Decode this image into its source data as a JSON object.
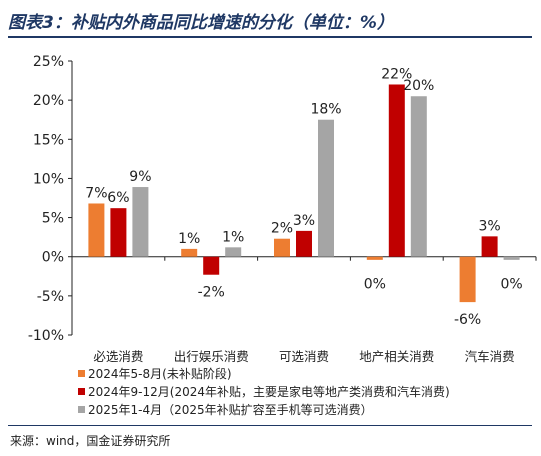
{
  "title": "图表3：补贴内外商品同比增速的分化（单位：%）",
  "source": "来源：wind，国金证券研究所",
  "colors": {
    "series": [
      "#ED7D31",
      "#C00000",
      "#A5A5A5"
    ],
    "title": "#1f3864"
  },
  "chart_data": {
    "type": "bar",
    "categories": [
      "必选消费",
      "出行娱乐消费",
      "可选消费",
      "地产相关消费",
      "汽车消费"
    ],
    "series": [
      {
        "name": "2024年5-8月(未补贴阶段)",
        "values": [
          6.8,
          1.0,
          2.3,
          -0.4,
          -5.8
        ],
        "labels": [
          "7%",
          "1%",
          "2%",
          "0%",
          "-6%"
        ]
      },
      {
        "name": "2024年9-12月(2024年补贴，主要是家电等地产类消费和汽车消费)",
        "values": [
          6.2,
          -2.3,
          3.3,
          22.0,
          2.6
        ],
        "labels": [
          "6%",
          "-2%",
          "3%",
          "22%",
          "3%"
        ]
      },
      {
        "name": "2025年1-4月（2025年补贴扩容至手机等可选消费）",
        "values": [
          8.9,
          1.2,
          17.5,
          20.5,
          -0.4
        ],
        "labels": [
          "9%",
          "1%",
          "18%",
          "20%",
          "0%"
        ]
      }
    ],
    "ylim": [
      -10,
      25
    ],
    "yticks": [
      25,
      20,
      15,
      10,
      5,
      0,
      -5,
      -10
    ],
    "ytick_labels": [
      "25%",
      "20%",
      "15%",
      "10%",
      "5%",
      "0%",
      "-5%",
      "-10%"
    ],
    "xlabel": "",
    "ylabel": "",
    "grid": false,
    "legend": "bottom-left"
  }
}
